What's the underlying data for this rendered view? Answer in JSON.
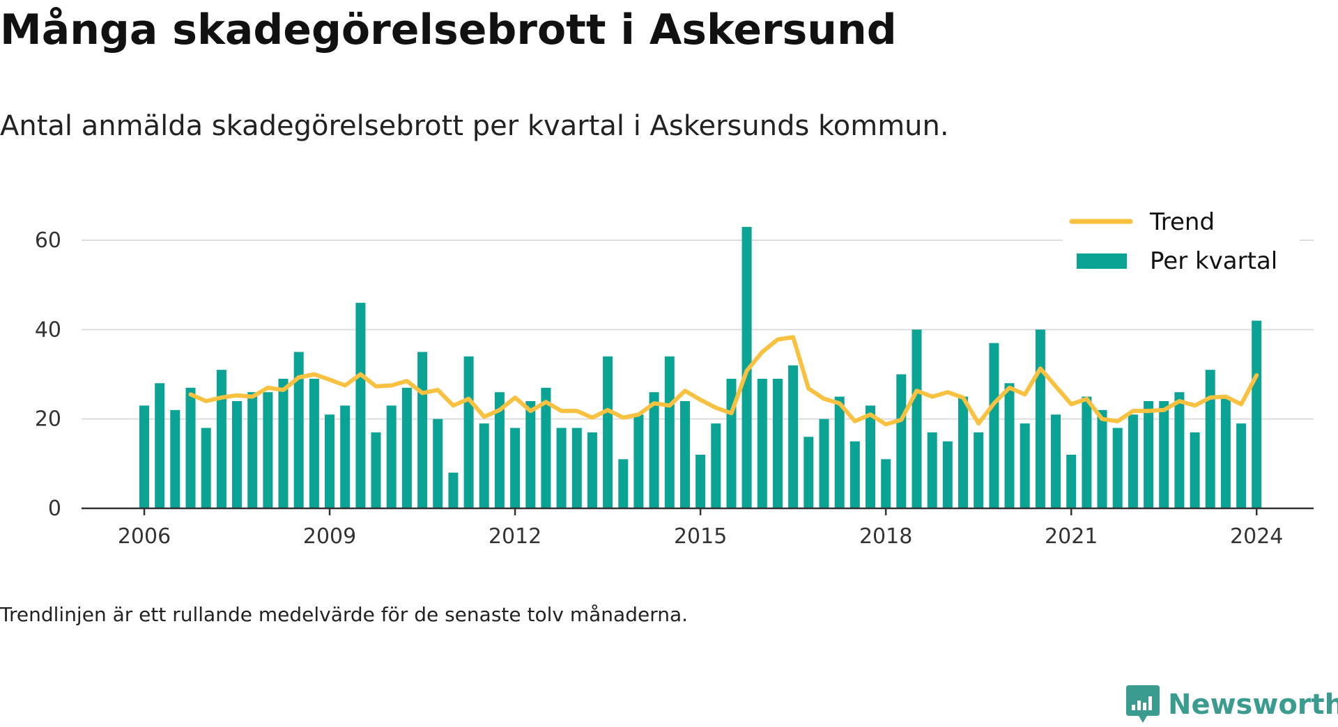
{
  "title": "Många skadegörelsebrott i Askersund",
  "subtitle": "Antal anmälda skadegörelsebrott per kvartal i Askersunds kommun.",
  "footnote": "Trendlinjen är ett rullande medelvärde för de senaste tolv månaderna.",
  "brand": "Newsworthy",
  "colors": {
    "bar": "#0aa394",
    "trend": "#f8c140",
    "grid": "#dcdcdc",
    "axis": "#333333",
    "brand": "#3a9c8f"
  },
  "chart_data": {
    "type": "bar",
    "title": "Många skadegörelsebrott i Askersund",
    "subtitle": "Antal anmälda skadegörelsebrott per kvartal i Askersunds kommun.",
    "xlabel": "",
    "ylabel": "",
    "x_start": "2006",
    "x_step": "quarter",
    "x_ticks": [
      "2006",
      "2009",
      "2012",
      "2015",
      "2018",
      "2021",
      "2024"
    ],
    "y_ticks": [
      0,
      20,
      40,
      60
    ],
    "ylim": [
      0,
      65
    ],
    "grid": "horizontal",
    "legend": "top-right",
    "series": [
      {
        "name": "Per kvartal",
        "type": "bar",
        "values": [
          23,
          28,
          22,
          27,
          18,
          31,
          24,
          26,
          26,
          29,
          35,
          29,
          21,
          23,
          46,
          17,
          23,
          27,
          35,
          20,
          8,
          34,
          19,
          26,
          18,
          24,
          27,
          18,
          18,
          17,
          34,
          11,
          21,
          26,
          34,
          24,
          12,
          19,
          29,
          63,
          29,
          29,
          32,
          16,
          20,
          25,
          15,
          23,
          11,
          30,
          40,
          17,
          15,
          25,
          17,
          37,
          28,
          19,
          40,
          21,
          12,
          25,
          22,
          18,
          21,
          24,
          24,
          26,
          17,
          31,
          25,
          19,
          42
        ]
      },
      {
        "name": "Trend",
        "type": "line",
        "start_index": 3,
        "values": [
          25.5,
          24,
          24.8,
          25.3,
          25,
          27,
          26.5,
          29.3,
          30,
          28.8,
          27.5,
          30,
          27.3,
          27.5,
          28.5,
          25.8,
          26.5,
          23,
          24.5,
          20.5,
          22,
          24.8,
          21.8,
          23.8,
          21.8,
          21.8,
          20.3,
          22,
          20.3,
          21,
          23.5,
          23,
          26.3,
          24.3,
          22.5,
          21.3,
          30.8,
          35,
          37.8,
          38.3,
          26.8,
          24.5,
          23.5,
          19.5,
          21,
          18.8,
          19.8,
          26.3,
          25,
          26,
          24.8,
          19,
          23.5,
          27,
          25.5,
          31.3,
          27.3,
          23.3,
          24.5,
          20,
          19.5,
          21.8,
          21.8,
          22,
          24,
          23,
          24.8,
          25,
          23.3,
          29.8
        ]
      }
    ]
  }
}
